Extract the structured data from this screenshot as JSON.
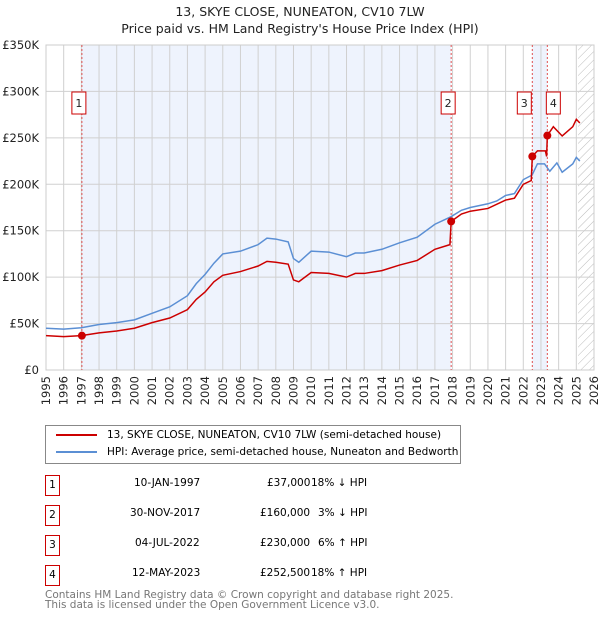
{
  "title": "13, SKYE CLOSE, NUNEATON, CV10 7LW",
  "subtitle": "Price paid vs. HM Land Registry's House Price Index (HPI)",
  "chart_data": {
    "type": "line",
    "xlim": [
      1995,
      2026
    ],
    "ylim": [
      0,
      350000
    ],
    "x_ticks": [
      "1995",
      "1996",
      "1997",
      "1998",
      "1999",
      "2000",
      "2001",
      "2002",
      "2003",
      "2004",
      "2005",
      "2006",
      "2007",
      "2008",
      "2009",
      "2010",
      "2011",
      "2012",
      "2013",
      "2014",
      "2015",
      "2016",
      "2017",
      "2018",
      "2019",
      "2020",
      "2021",
      "2022",
      "2023",
      "2024",
      "2025",
      "2026"
    ],
    "y_ticks": [
      {
        "v": 0,
        "label": "£0"
      },
      {
        "v": 50000,
        "label": "£50K"
      },
      {
        "v": 100000,
        "label": "£100K"
      },
      {
        "v": 150000,
        "label": "£150K"
      },
      {
        "v": 200000,
        "label": "£200K"
      },
      {
        "v": 250000,
        "label": "£250K"
      },
      {
        "v": 300000,
        "label": "£300K"
      },
      {
        "v": 350000,
        "label": "£350K"
      }
    ],
    "grid": true,
    "shaded_ranges": [
      [
        1997.03,
        2017.92
      ],
      [
        2022.51,
        2023.36
      ]
    ],
    "forecast_from": 2025.1,
    "series": [
      {
        "name": "13, SKYE CLOSE, NUNEATON, CV10 7LW (semi-detached house)",
        "color": "#cc0000",
        "points": [
          [
            1995,
            37
          ],
          [
            1996,
            36
          ],
          [
            1997,
            37
          ],
          [
            1998,
            40
          ],
          [
            1999,
            42
          ],
          [
            2000,
            45
          ],
          [
            2001,
            51
          ],
          [
            2002,
            56
          ],
          [
            2003,
            65
          ],
          [
            2003.5,
            76
          ],
          [
            2004,
            84
          ],
          [
            2004.5,
            95
          ],
          [
            2005,
            102
          ],
          [
            2006,
            106
          ],
          [
            2007,
            112
          ],
          [
            2007.5,
            117
          ],
          [
            2008,
            116
          ],
          [
            2008.7,
            114
          ],
          [
            2009,
            97
          ],
          [
            2009.3,
            95
          ],
          [
            2010,
            105
          ],
          [
            2011,
            104
          ],
          [
            2012,
            100
          ],
          [
            2012.5,
            104
          ],
          [
            2013,
            104
          ],
          [
            2014,
            107
          ],
          [
            2015,
            113
          ],
          [
            2016,
            118
          ],
          [
            2017,
            130
          ],
          [
            2017.85,
            135
          ],
          [
            2017.92,
            160
          ],
          [
            2018.5,
            168
          ],
          [
            2019,
            171
          ],
          [
            2020,
            174
          ],
          [
            2021,
            183
          ],
          [
            2021.5,
            185
          ],
          [
            2022,
            200
          ],
          [
            2022.45,
            204
          ],
          [
            2022.51,
            230
          ],
          [
            2022.8,
            236
          ],
          [
            2023.25,
            236
          ],
          [
            2023.32,
            230
          ],
          [
            2023.36,
            252.5
          ],
          [
            2023.7,
            262
          ],
          [
            2024.2,
            252
          ],
          [
            2024.8,
            262
          ],
          [
            2025,
            270
          ],
          [
            2025.2,
            266
          ]
        ]
      },
      {
        "name": "HPI: Average price, semi-detached house, Nuneaton and Bedworth",
        "color": "#5b8fd4",
        "points": [
          [
            1995,
            45
          ],
          [
            1996,
            44
          ],
          [
            1997,
            45.5
          ],
          [
            1998,
            49
          ],
          [
            1999,
            51
          ],
          [
            2000,
            54
          ],
          [
            2001,
            61
          ],
          [
            2002,
            68
          ],
          [
            2003,
            80
          ],
          [
            2003.5,
            93
          ],
          [
            2004,
            103
          ],
          [
            2004.5,
            115
          ],
          [
            2005,
            125
          ],
          [
            2006,
            128
          ],
          [
            2007,
            135
          ],
          [
            2007.5,
            142
          ],
          [
            2008,
            141
          ],
          [
            2008.7,
            138
          ],
          [
            2009,
            120
          ],
          [
            2009.3,
            116
          ],
          [
            2010,
            128
          ],
          [
            2011,
            127
          ],
          [
            2012,
            122
          ],
          [
            2012.5,
            126
          ],
          [
            2013,
            126
          ],
          [
            2014,
            130
          ],
          [
            2015,
            137
          ],
          [
            2016,
            143
          ],
          [
            2017,
            157
          ],
          [
            2017.9,
            165
          ],
          [
            2018.5,
            172
          ],
          [
            2019,
            175
          ],
          [
            2020,
            179
          ],
          [
            2020.5,
            182
          ],
          [
            2021,
            188
          ],
          [
            2021.5,
            190
          ],
          [
            2022,
            205
          ],
          [
            2022.5,
            210
          ],
          [
            2022.8,
            222
          ],
          [
            2023.2,
            222
          ],
          [
            2023.5,
            214
          ],
          [
            2023.9,
            223
          ],
          [
            2024.2,
            213
          ],
          [
            2024.8,
            222
          ],
          [
            2025,
            229
          ],
          [
            2025.2,
            225
          ]
        ]
      }
    ],
    "sales": [
      {
        "n": "1",
        "date": "10-JAN-1997",
        "x": 1997.03,
        "price": "£37,000",
        "value": 37000,
        "hpi": "18% ↓ HPI"
      },
      {
        "n": "2",
        "date": "30-NOV-2017",
        "x": 2017.92,
        "price": "£160,000",
        "value": 160000,
        "hpi": "3% ↓ HPI"
      },
      {
        "n": "3",
        "date": "04-JUL-2022",
        "x": 2022.51,
        "price": "£230,000",
        "value": 230000,
        "hpi": "6% ↑ HPI"
      },
      {
        "n": "4",
        "date": "12-MAY-2023",
        "x": 2023.36,
        "price": "£252,500",
        "value": 252500,
        "hpi": "18% ↑ HPI"
      }
    ]
  },
  "footer": [
    "Contains HM Land Registry data © Crown copyright and database right 2025.",
    "This data is licensed under the Open Government Licence v3.0."
  ]
}
